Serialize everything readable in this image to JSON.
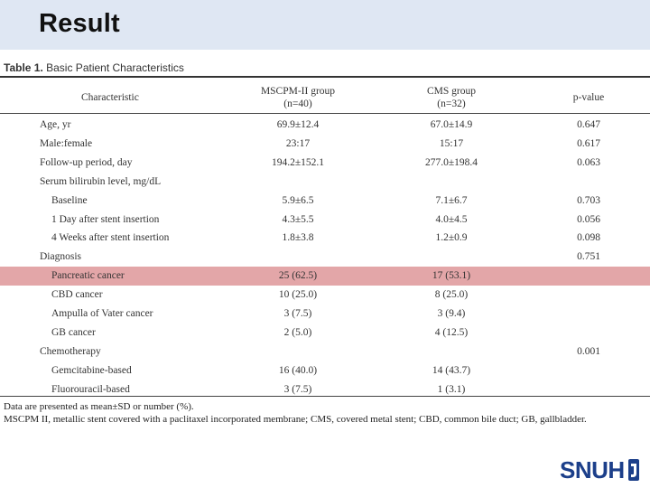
{
  "slide": {
    "title": "Result"
  },
  "table": {
    "caption_prefix": "Table 1.",
    "caption_text": " Basic Patient Characteristics",
    "headers": {
      "characteristic": "Characteristic",
      "group1_line1": "MSCPM-II group",
      "group1_line2": "(n=40)",
      "group2_line1": "CMS group",
      "group2_line2": "(n=32)",
      "pvalue": "p-value"
    },
    "rows": [
      {
        "label": "Age, yr",
        "g1": "69.9±12.4",
        "g2": "67.0±14.9",
        "p": "0.647",
        "indent": false,
        "highlight": false
      },
      {
        "label": "Male:female",
        "g1": "23:17",
        "g2": "15:17",
        "p": "0.617",
        "indent": false,
        "highlight": false
      },
      {
        "label": "Follow-up period, day",
        "g1": "194.2±152.1",
        "g2": "277.0±198.4",
        "p": "0.063",
        "indent": false,
        "highlight": false
      },
      {
        "label": "Serum bilirubin level, mg/dL",
        "g1": "",
        "g2": "",
        "p": "",
        "indent": false,
        "highlight": false
      },
      {
        "label": "Baseline",
        "g1": "5.9±6.5",
        "g2": "7.1±6.7",
        "p": "0.703",
        "indent": true,
        "highlight": false
      },
      {
        "label": "1 Day after stent insertion",
        "g1": "4.3±5.5",
        "g2": "4.0±4.5",
        "p": "0.056",
        "indent": true,
        "highlight": false
      },
      {
        "label": "4 Weeks after stent insertion",
        "g1": "1.8±3.8",
        "g2": "1.2±0.9",
        "p": "0.098",
        "indent": true,
        "highlight": false
      },
      {
        "label": "Diagnosis",
        "g1": "",
        "g2": "",
        "p": "0.751",
        "indent": false,
        "highlight": false
      },
      {
        "label": "Pancreatic cancer",
        "g1": "25 (62.5)",
        "g2": "17 (53.1)",
        "p": "",
        "indent": true,
        "highlight": true
      },
      {
        "label": "CBD cancer",
        "g1": "10 (25.0)",
        "g2": "8 (25.0)",
        "p": "",
        "indent": true,
        "highlight": false
      },
      {
        "label": "Ampulla of Vater cancer",
        "g1": "3 (7.5)",
        "g2": "3 (9.4)",
        "p": "",
        "indent": true,
        "highlight": false
      },
      {
        "label": "GB cancer",
        "g1": "2 (5.0)",
        "g2": "4 (12.5)",
        "p": "",
        "indent": true,
        "highlight": false
      },
      {
        "label": "Chemotherapy",
        "g1": "",
        "g2": "",
        "p": "0.001",
        "indent": false,
        "highlight": false
      },
      {
        "label": "Gemcitabine-based",
        "g1": "16 (40.0)",
        "g2": "14 (43.7)",
        "p": "",
        "indent": true,
        "highlight": false
      },
      {
        "label": "Fluorouracil-based",
        "g1": "3 (7.5)",
        "g2": "1 (3.1)",
        "p": "",
        "indent": true,
        "highlight": false
      }
    ],
    "footnotes": [
      "Data are presented as mean±SD or number (%).",
      "MSCPM II, metallic stent covered with a paclitaxel incorporated membrane; CMS, covered metal stent; CBD, common bile duct; GB, gallbladder."
    ]
  },
  "logo": {
    "text": "SNUH",
    "icon": "snuh-emblem-icon",
    "color": "#1c3f8a"
  },
  "colors": {
    "header_band": "#dfe7f3",
    "highlight_row": "#e3a6a8"
  }
}
